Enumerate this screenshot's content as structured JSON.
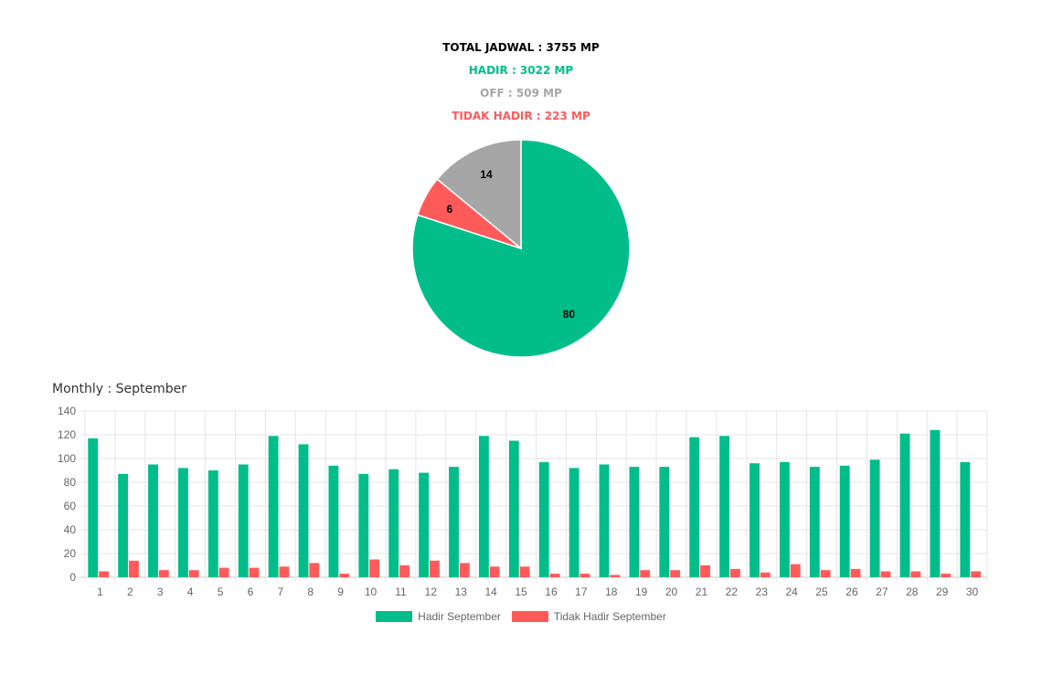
{
  "summary": {
    "total": "TOTAL JADWAL : 3755 MP",
    "hadir": "HADIR : 3022 MP",
    "off": "OFF : 509 MP",
    "tidak_hadir": "TIDAK HADIR : 223 MP"
  },
  "colors": {
    "hadir": "#00bd8a",
    "off": "#a6a6a6",
    "tidak_hadir": "#ff5a5a",
    "black": "#000000"
  },
  "monthly_title": "Monthly : September",
  "chart_data": [
    {
      "type": "pie",
      "slices": [
        {
          "label": "80",
          "value": 80,
          "color": "#00bd8a"
        },
        {
          "label": "6",
          "value": 6,
          "color": "#ff5a5a"
        },
        {
          "label": "14",
          "value": 14,
          "color": "#a6a6a6"
        }
      ]
    },
    {
      "type": "bar",
      "title": "Monthly : September",
      "categories": [
        "1",
        "2",
        "3",
        "4",
        "5",
        "6",
        "7",
        "8",
        "9",
        "10",
        "11",
        "12",
        "13",
        "14",
        "15",
        "16",
        "17",
        "18",
        "19",
        "20",
        "21",
        "22",
        "23",
        "24",
        "25",
        "26",
        "27",
        "28",
        "29",
        "30"
      ],
      "series": [
        {
          "name": "Hadir September",
          "color": "#00bd8a",
          "values": [
            117,
            87,
            95,
            92,
            90,
            95,
            119,
            112,
            94,
            87,
            91,
            88,
            93,
            119,
            115,
            97,
            92,
            95,
            93,
            93,
            118,
            119,
            96,
            97,
            93,
            94,
            99,
            121,
            124,
            97
          ]
        },
        {
          "name": "Tidak Hadir September",
          "color": "#ff5a5a",
          "values": [
            5,
            14,
            6,
            6,
            8,
            8,
            9,
            12,
            3,
            15,
            10,
            14,
            12,
            9,
            9,
            3,
            3,
            2,
            6,
            6,
            10,
            7,
            4,
            11,
            6,
            7,
            5,
            5,
            3,
            5
          ]
        }
      ],
      "ylim": [
        0,
        140
      ],
      "yticks": [
        0,
        20,
        40,
        60,
        80,
        100,
        120,
        140
      ],
      "grid": true,
      "legend": "bottom"
    }
  ]
}
